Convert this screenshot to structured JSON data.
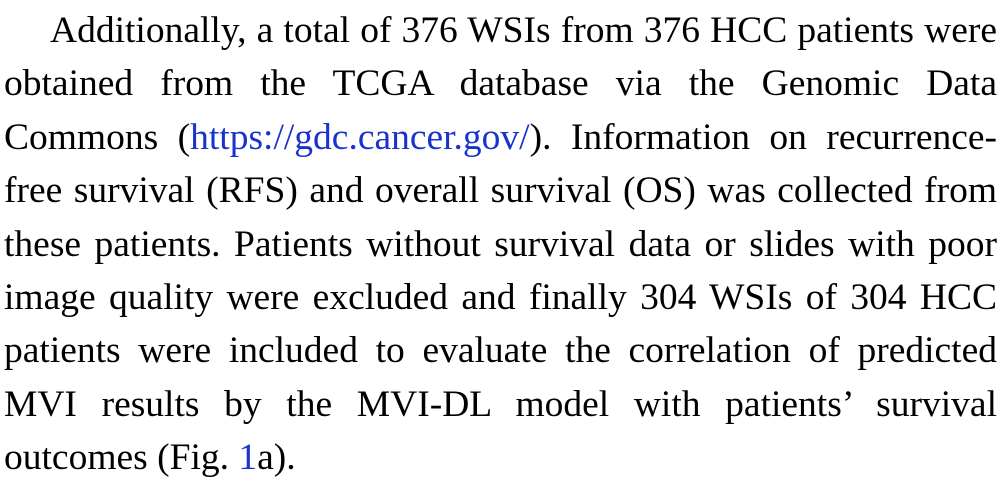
{
  "paragraph": {
    "seg1": "Additionally, a total of 376 WSIs from 376 HCC patients were obtained from the TCGA database via the Genomic Data Commons (",
    "link_url_text": "https://gdc.cancer.gov/",
    "seg2": "). Information on recurrence-free survival (RFS) and overall survival (OS) was collected from these patients. Patients without survival data or slides with poor image quality were excluded and finally 304 WSIs of 304 HCC patients were included to evaluate the correlation of predicted MVI results by the MVI-DL model with patients’ survival outcomes (Fig. ",
    "fig_ref": "1",
    "seg3": "a)."
  },
  "colors": {
    "text": "#000000",
    "link": "#1a33cc",
    "background": "#ffffff"
  }
}
